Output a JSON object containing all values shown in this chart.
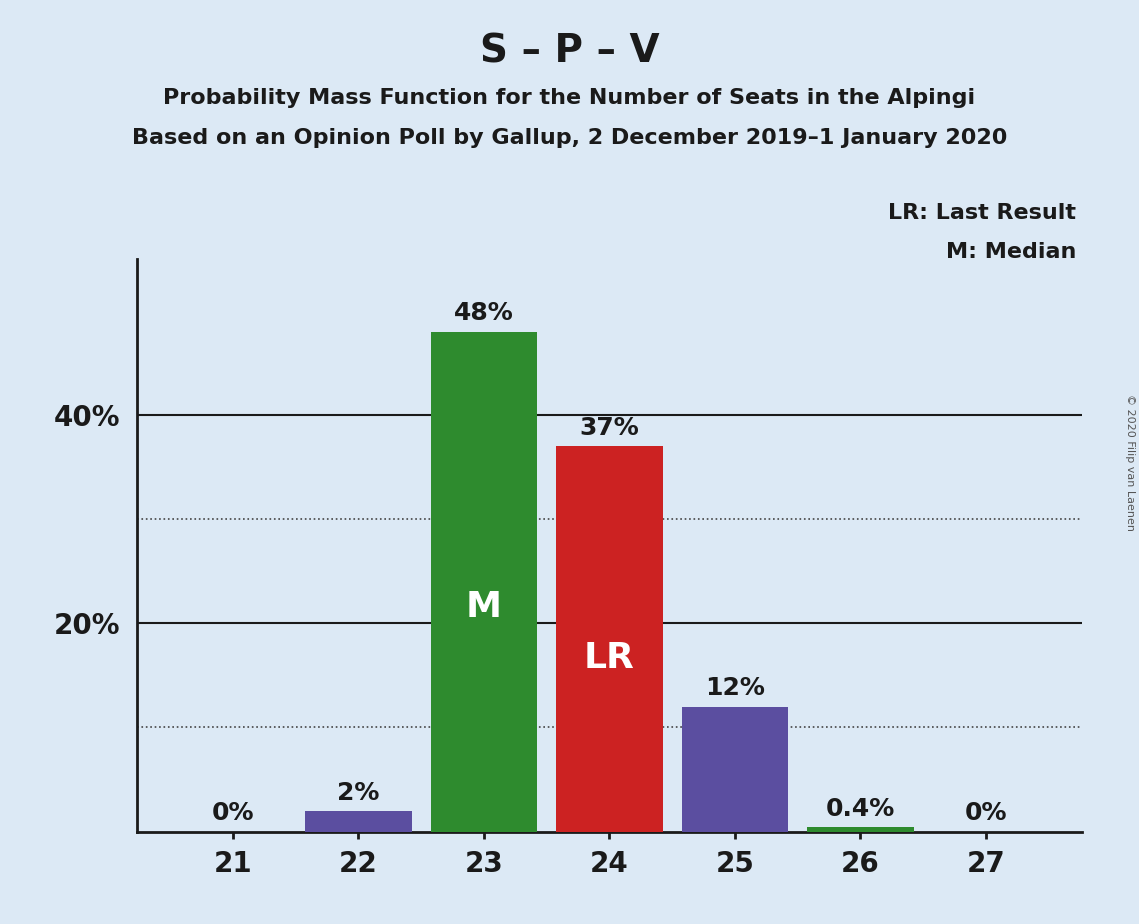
{
  "title": "S – P – V",
  "subtitle1": "Probability Mass Function for the Number of Seats in the Alpingi",
  "subtitle2": "Based on an Opinion Poll by Gallup, 2 December 2019–1 January 2020",
  "copyright": "© 2020 Filip van Laenen",
  "categories": [
    21,
    22,
    23,
    24,
    25,
    26,
    27
  ],
  "values": [
    0.0,
    2.0,
    48.0,
    37.0,
    12.0,
    0.4,
    0.0
  ],
  "bar_colors": [
    "#5b4ea0",
    "#5b4ea0",
    "#2e8b2e",
    "#cc2222",
    "#5b4ea0",
    "#2e8b2e",
    "#5b4ea0"
  ],
  "bar_labels": [
    "0%",
    "2%",
    "48%",
    "37%",
    "12%",
    "0.4%",
    "0%"
  ],
  "median_bar": 2,
  "lr_bar": 3,
  "median_label": "M",
  "lr_label": "LR",
  "legend_lr": "LR: Last Result",
  "legend_m": "M: Median",
  "background_color": "#dce9f5",
  "solid_gridlines": [
    20,
    40
  ],
  "dotted_gridlines": [
    10,
    30
  ],
  "ylim": [
    0,
    55
  ],
  "title_fontsize": 28,
  "subtitle_fontsize": 16,
  "bar_label_fontsize": 18,
  "axis_label_fontsize": 20,
  "ytick_fontsize": 20,
  "bar_inner_label_fontsize": 26,
  "legend_fontsize": 16
}
